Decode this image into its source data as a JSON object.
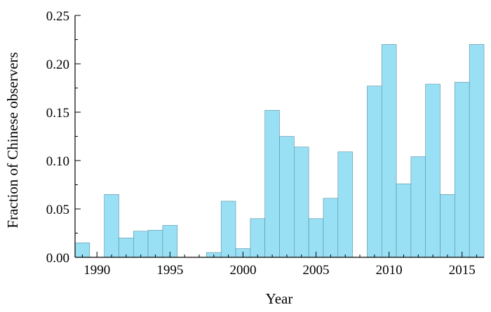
{
  "chart_data": {
    "type": "bar",
    "xlabel": "Year",
    "ylabel": "Fraction of Chinese observers",
    "xlim": [
      1988.5,
      2016.5
    ],
    "ylim": [
      0,
      0.25
    ],
    "xticks": [
      1990,
      1995,
      2000,
      2005,
      2010,
      2015
    ],
    "yticks": [
      0.0,
      0.05,
      0.1,
      0.15,
      0.2,
      0.25
    ],
    "xtick_labels": [
      "1990",
      "1995",
      "2000",
      "2005",
      "2010",
      "2015"
    ],
    "ytick_labels": [
      "0.00",
      "0.05",
      "0.10",
      "0.15",
      "0.20",
      "0.25"
    ],
    "grid": false,
    "bar_color": "#99e0f5",
    "edge_color": "#5a8fa3",
    "x": [
      1989,
      1990,
      1991,
      1992,
      1993,
      1994,
      1995,
      1996,
      1997,
      1998,
      1999,
      2000,
      2001,
      2002,
      2003,
      2004,
      2005,
      2006,
      2007,
      2008,
      2009,
      2010,
      2011,
      2012,
      2013,
      2014,
      2015,
      2016
    ],
    "values": [
      0.015,
      0.0,
      0.065,
      0.02,
      0.027,
      0.028,
      0.033,
      0.0,
      0.0,
      0.005,
      0.058,
      0.009,
      0.04,
      0.152,
      0.125,
      0.114,
      0.04,
      0.061,
      0.109,
      0.0,
      0.177,
      0.22,
      0.076,
      0.104,
      0.179,
      0.065,
      0.181,
      0.22
    ]
  }
}
